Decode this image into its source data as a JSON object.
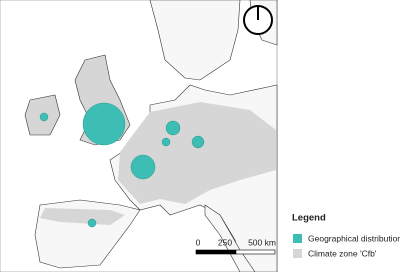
{
  "legend": {
    "title": "Legend",
    "items": [
      "Geographical distribution",
      "Climate zone 'Cfb'"
    ]
  },
  "scale_bar": {
    "labels": [
      "0",
      "250",
      "500 km"
    ]
  }
}
